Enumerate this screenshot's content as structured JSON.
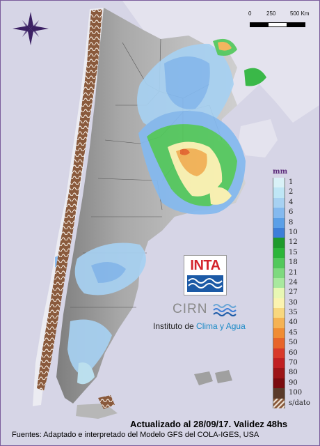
{
  "scale": {
    "labels": [
      "0",
      "250",
      "500 Km"
    ],
    "colors": [
      "#000000",
      "#ffffff",
      "#000000"
    ]
  },
  "legend": {
    "unit": "mm",
    "items": [
      {
        "label": "1",
        "color": "#d9f1f7"
      },
      {
        "label": "2",
        "color": "#bfe6f6"
      },
      {
        "label": "4",
        "color": "#a7d1f2"
      },
      {
        "label": "6",
        "color": "#84b9ef"
      },
      {
        "label": "8",
        "color": "#5b9fe7"
      },
      {
        "label": "10",
        "color": "#3d7ed8"
      },
      {
        "label": "12",
        "color": "#1e9a2c"
      },
      {
        "label": "15",
        "color": "#2cb53a"
      },
      {
        "label": "18",
        "color": "#52c85c"
      },
      {
        "label": "21",
        "color": "#7ed97f"
      },
      {
        "label": "24",
        "color": "#a8e89e"
      },
      {
        "label": "27",
        "color": "#e8f7b4"
      },
      {
        "label": "30",
        "color": "#fbf3b0"
      },
      {
        "label": "35",
        "color": "#f8d77e"
      },
      {
        "label": "40",
        "color": "#f5b253"
      },
      {
        "label": "45",
        "color": "#f08c33"
      },
      {
        "label": "50",
        "color": "#e7642a"
      },
      {
        "label": "60",
        "color": "#d8392a"
      },
      {
        "label": "70",
        "color": "#c01f22"
      },
      {
        "label": "80",
        "color": "#9c1417"
      },
      {
        "label": "90",
        "color": "#7a0b0f"
      },
      {
        "label": "100",
        "color": "#5a3a2a"
      },
      {
        "label": "s/dato",
        "color": "#8a5a3c"
      }
    ]
  },
  "logos": {
    "inta": "INTA",
    "cirn": "CIRN",
    "institute_prefix": "Instituto de ",
    "institute_highlight": "Clima y Agua"
  },
  "footer": {
    "updated": "Actualizado al 28/09/17. Validez 48hs",
    "sources": "Fuentes: Adaptado e interpretado del Modelo GFS del COLA-IGES, USA"
  },
  "colors": {
    "background": "#d6d5e6",
    "land_light": "#c8c8c8",
    "land_dark": "#8f8f8f",
    "border": "#7a5b9b",
    "compass": "#3b1f63"
  }
}
